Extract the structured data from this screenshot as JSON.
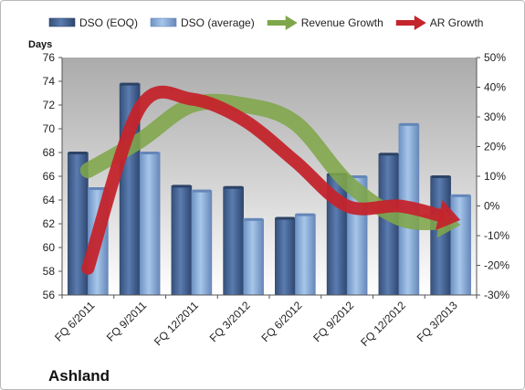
{
  "chart_data": {
    "type": "bar",
    "title": "",
    "company": "Ashland",
    "ylabel_left": "Days",
    "categories": [
      "FQ 6/2011",
      "FQ 9/2011",
      "FQ 12/2011",
      "FQ 3/2012",
      "FQ 6/2012",
      "FQ 9/2012",
      "FQ 12/2012",
      "FQ 3/2013"
    ],
    "series": [
      {
        "name": "DSO (EOQ)",
        "values": [
          68.0,
          73.8,
          65.2,
          65.1,
          62.5,
          66.2,
          67.9,
          66.0
        ],
        "color": "#4a6a9a"
      },
      {
        "name": "DSO (average)",
        "values": [
          65.0,
          68.0,
          64.8,
          62.4,
          62.8,
          66.0,
          70.4,
          64.4
        ],
        "color": "#8fb2dc"
      }
    ],
    "trend_arrows": [
      {
        "name": "Revenue Growth",
        "color": "#7fa64a",
        "values": [
          12,
          22,
          34,
          34,
          28,
          8,
          -4,
          -6
        ]
      },
      {
        "name": "AR Growth",
        "color": "#c4242c",
        "values": [
          -21,
          33,
          36,
          29,
          15,
          0,
          0,
          -4
        ]
      }
    ],
    "ylim_left": [
      56,
      76
    ],
    "yticks_left": [
      "56",
      "58",
      "60",
      "62",
      "64",
      "66",
      "68",
      "70",
      "72",
      "74",
      "76"
    ],
    "ylim_right": [
      -30,
      50
    ],
    "yticks_right": [
      "-30%",
      "-20%",
      "-10%",
      "0%",
      "10%",
      "20%",
      "30%",
      "40%",
      "50%"
    ],
    "legend_position": "top",
    "grid": false
  }
}
